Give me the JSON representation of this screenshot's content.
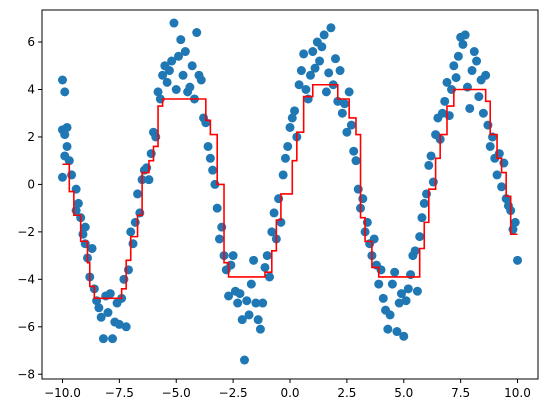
{
  "chart_data": {
    "type": "scatter",
    "title": "",
    "xlabel": "",
    "ylabel": "",
    "xlim": [
      -10.9,
      10.9
    ],
    "ylim": [
      -8.2,
      7.35
    ],
    "grid": false,
    "legend": "none",
    "x_ticks": [
      -10.0,
      -7.5,
      -5.0,
      -2.5,
      0.0,
      2.5,
      5.0,
      7.5,
      10.0
    ],
    "x_tick_labels": [
      "−10.0",
      "−7.5",
      "−5.0",
      "−2.5",
      "0.0",
      "2.5",
      "5.0",
      "7.5",
      "10.0"
    ],
    "y_ticks": [
      -8,
      -6,
      -4,
      -2,
      0,
      2,
      4,
      6
    ],
    "y_tick_labels": [
      "−8",
      "−6",
      "−4",
      "−2",
      "0",
      "2",
      "4",
      "6"
    ],
    "colors": {
      "points": "#1f77b4",
      "step_line": "#ff0000"
    },
    "series": [
      {
        "type": "scatter",
        "points": [
          [
            -10.0,
            4.4
          ],
          [
            -9.9,
            3.9
          ],
          [
            -10.0,
            2.3
          ],
          [
            -9.9,
            2.1
          ],
          [
            -9.8,
            2.4
          ],
          [
            -9.8,
            1.6
          ],
          [
            -9.9,
            1.2
          ],
          [
            -10.0,
            0.3
          ],
          [
            -9.7,
            1.0
          ],
          [
            -9.6,
            0.4
          ],
          [
            -9.4,
            -0.2
          ],
          [
            -9.4,
            -1.1
          ],
          [
            -9.3,
            -0.8
          ],
          [
            -9.2,
            -1.4
          ],
          [
            -9.1,
            -2.1
          ],
          [
            -9.0,
            -2.5
          ],
          [
            -9.0,
            -1.8
          ],
          [
            -8.9,
            -3.1
          ],
          [
            -8.8,
            -3.9
          ],
          [
            -8.7,
            -2.7
          ],
          [
            -8.6,
            -4.4
          ],
          [
            -8.5,
            -4.9
          ],
          [
            -8.4,
            -5.2
          ],
          [
            -8.3,
            -5.6
          ],
          [
            -8.2,
            -6.5
          ],
          [
            -8.1,
            -4.7
          ],
          [
            -8.0,
            -5.4
          ],
          [
            -7.9,
            -4.6
          ],
          [
            -7.8,
            -6.5
          ],
          [
            -7.7,
            -5.8
          ],
          [
            -7.6,
            -5.0
          ],
          [
            -7.5,
            -5.9
          ],
          [
            -7.4,
            -4.8
          ],
          [
            -7.3,
            -4.0
          ],
          [
            -7.2,
            -6.0
          ],
          [
            -7.1,
            -3.6
          ],
          [
            -7.0,
            -2.0
          ],
          [
            -6.9,
            -2.5
          ],
          [
            -6.8,
            -1.6
          ],
          [
            -6.7,
            -0.4
          ],
          [
            -6.6,
            -1.2
          ],
          [
            -6.5,
            0.2
          ],
          [
            -6.4,
            0.6
          ],
          [
            -6.3,
            0.7
          ],
          [
            -6.2,
            0.2
          ],
          [
            -6.1,
            1.3
          ],
          [
            -6.0,
            2.2
          ],
          [
            -5.9,
            2.0
          ],
          [
            -5.8,
            3.9
          ],
          [
            -5.7,
            3.6
          ],
          [
            -5.6,
            4.6
          ],
          [
            -5.5,
            5.0
          ],
          [
            -5.4,
            4.3
          ],
          [
            -5.3,
            4.8
          ],
          [
            -5.2,
            5.2
          ],
          [
            -5.1,
            6.8
          ],
          [
            -5.0,
            4.0
          ],
          [
            -4.9,
            5.4
          ],
          [
            -4.8,
            6.1
          ],
          [
            -4.7,
            4.6
          ],
          [
            -4.6,
            5.6
          ],
          [
            -4.5,
            3.9
          ],
          [
            -4.4,
            4.1
          ],
          [
            -4.3,
            5.0
          ],
          [
            -4.2,
            3.6
          ],
          [
            -4.1,
            6.4
          ],
          [
            -4.0,
            4.6
          ],
          [
            -3.9,
            4.4
          ],
          [
            -3.8,
            2.8
          ],
          [
            -3.7,
            2.6
          ],
          [
            -3.6,
            1.6
          ],
          [
            -3.5,
            1.1
          ],
          [
            -3.4,
            0.6
          ],
          [
            -3.3,
            0.0
          ],
          [
            -3.2,
            -1.0
          ],
          [
            -3.1,
            -2.3
          ],
          [
            -3.0,
            -1.8
          ],
          [
            -2.9,
            -3.0
          ],
          [
            -2.8,
            -3.6
          ],
          [
            -2.7,
            -4.7
          ],
          [
            -2.6,
            -3.4
          ],
          [
            -2.5,
            -3.0
          ],
          [
            -2.4,
            -4.5
          ],
          [
            -2.3,
            -5.0
          ],
          [
            -2.2,
            -4.6
          ],
          [
            -2.1,
            -5.7
          ],
          [
            -2.0,
            -7.4
          ],
          [
            -1.9,
            -4.9
          ],
          [
            -1.8,
            -5.5
          ],
          [
            -1.7,
            -4.2
          ],
          [
            -1.6,
            -3.2
          ],
          [
            -1.5,
            -5.0
          ],
          [
            -1.4,
            -5.7
          ],
          [
            -1.3,
            -6.1
          ],
          [
            -1.2,
            -5.0
          ],
          [
            -1.1,
            -3.5
          ],
          [
            -1.0,
            -3.0
          ],
          [
            -0.9,
            -3.9
          ],
          [
            -0.8,
            -2.0
          ],
          [
            -0.7,
            -1.2
          ],
          [
            -0.6,
            -2.3
          ],
          [
            -0.5,
            -0.6
          ],
          [
            -0.4,
            -1.6
          ],
          [
            -0.3,
            0.4
          ],
          [
            -0.2,
            1.1
          ],
          [
            -0.1,
            1.6
          ],
          [
            0.0,
            2.4
          ],
          [
            0.1,
            2.8
          ],
          [
            0.2,
            3.1
          ],
          [
            0.3,
            2.0
          ],
          [
            0.4,
            4.2
          ],
          [
            0.5,
            4.8
          ],
          [
            0.6,
            5.5
          ],
          [
            0.7,
            4.0
          ],
          [
            0.8,
            3.6
          ],
          [
            0.9,
            4.6
          ],
          [
            1.0,
            5.6
          ],
          [
            1.1,
            4.9
          ],
          [
            1.2,
            6.0
          ],
          [
            1.3,
            5.2
          ],
          [
            1.4,
            5.8
          ],
          [
            1.5,
            6.3
          ],
          [
            1.6,
            3.9
          ],
          [
            1.7,
            4.7
          ],
          [
            1.8,
            6.6
          ],
          [
            1.9,
            4.2
          ],
          [
            2.0,
            5.3
          ],
          [
            2.1,
            3.5
          ],
          [
            2.2,
            4.8
          ],
          [
            2.3,
            3.0
          ],
          [
            2.4,
            3.4
          ],
          [
            2.5,
            2.2
          ],
          [
            2.6,
            3.9
          ],
          [
            2.7,
            2.5
          ],
          [
            2.8,
            1.4
          ],
          [
            2.9,
            1.0
          ],
          [
            3.0,
            -0.2
          ],
          [
            3.1,
            -1.0
          ],
          [
            3.2,
            -0.6
          ],
          [
            3.3,
            -2.0
          ],
          [
            3.4,
            -1.6
          ],
          [
            3.5,
            -2.5
          ],
          [
            3.6,
            -3.0
          ],
          [
            3.7,
            -2.3
          ],
          [
            3.8,
            -3.4
          ],
          [
            3.9,
            -4.2
          ],
          [
            4.0,
            -3.6
          ],
          [
            4.1,
            -4.8
          ],
          [
            4.2,
            -5.3
          ],
          [
            4.3,
            -6.1
          ],
          [
            4.4,
            -5.5
          ],
          [
            4.5,
            -4.2
          ],
          [
            4.6,
            -3.7
          ],
          [
            4.7,
            -6.2
          ],
          [
            4.8,
            -5.0
          ],
          [
            4.9,
            -4.6
          ],
          [
            5.0,
            -6.4
          ],
          [
            5.1,
            -4.9
          ],
          [
            5.2,
            -4.4
          ],
          [
            5.3,
            -3.8
          ],
          [
            5.4,
            -3.0
          ],
          [
            5.5,
            -2.8
          ],
          [
            5.6,
            -4.5
          ],
          [
            5.7,
            -2.2
          ],
          [
            5.8,
            -1.4
          ],
          [
            5.9,
            -0.8
          ],
          [
            6.0,
            -0.4
          ],
          [
            6.1,
            0.8
          ],
          [
            6.2,
            1.2
          ],
          [
            6.3,
            0.1
          ],
          [
            6.4,
            2.1
          ],
          [
            6.5,
            2.8
          ],
          [
            6.6,
            1.9
          ],
          [
            6.7,
            3.0
          ],
          [
            6.8,
            3.5
          ],
          [
            6.9,
            4.3
          ],
          [
            7.0,
            2.9
          ],
          [
            7.1,
            4.0
          ],
          [
            7.2,
            5.0
          ],
          [
            7.3,
            4.5
          ],
          [
            7.4,
            5.4
          ],
          [
            7.5,
            6.2
          ],
          [
            7.6,
            5.9
          ],
          [
            7.7,
            6.3
          ],
          [
            7.8,
            4.1
          ],
          [
            7.9,
            3.2
          ],
          [
            8.0,
            4.8
          ],
          [
            8.1,
            5.6
          ],
          [
            8.2,
            5.2
          ],
          [
            8.3,
            3.7
          ],
          [
            8.4,
            4.4
          ],
          [
            8.5,
            3.0
          ],
          [
            8.6,
            4.6
          ],
          [
            8.7,
            2.5
          ],
          [
            8.8,
            1.6
          ],
          [
            8.9,
            2.0
          ],
          [
            9.0,
            1.1
          ],
          [
            9.1,
            0.4
          ],
          [
            9.2,
            1.3
          ],
          [
            9.3,
            -0.1
          ],
          [
            9.4,
            0.9
          ],
          [
            9.5,
            -0.6
          ],
          [
            9.6,
            -0.9
          ],
          [
            9.7,
            -1.1
          ],
          [
            9.8,
            -1.9
          ],
          [
            9.9,
            -1.6
          ],
          [
            10.0,
            -3.2
          ]
        ]
      },
      {
        "type": "step",
        "points": [
          [
            -10.0,
            0.85
          ],
          [
            -9.7,
            0.85
          ],
          [
            -9.7,
            -0.3
          ],
          [
            -9.5,
            -0.3
          ],
          [
            -9.5,
            -1.3
          ],
          [
            -9.2,
            -1.3
          ],
          [
            -9.2,
            -2.4
          ],
          [
            -8.9,
            -2.4
          ],
          [
            -8.9,
            -3.3
          ],
          [
            -8.8,
            -3.3
          ],
          [
            -8.8,
            -4.3
          ],
          [
            -8.6,
            -4.3
          ],
          [
            -8.6,
            -4.8
          ],
          [
            -7.4,
            -4.8
          ],
          [
            -7.4,
            -4.4
          ],
          [
            -7.2,
            -4.4
          ],
          [
            -7.2,
            -3.2
          ],
          [
            -7.0,
            -3.2
          ],
          [
            -7.0,
            -2.2
          ],
          [
            -6.7,
            -2.2
          ],
          [
            -6.7,
            -1.3
          ],
          [
            -6.5,
            -1.3
          ],
          [
            -6.5,
            0.5
          ],
          [
            -6.2,
            0.5
          ],
          [
            -6.2,
            1.0
          ],
          [
            -6.0,
            1.0
          ],
          [
            -6.0,
            1.6
          ],
          [
            -5.8,
            1.6
          ],
          [
            -5.8,
            3.3
          ],
          [
            -5.6,
            3.3
          ],
          [
            -5.6,
            3.6
          ],
          [
            -3.7,
            3.6
          ],
          [
            -3.7,
            2.7
          ],
          [
            -3.5,
            2.7
          ],
          [
            -3.5,
            2.1
          ],
          [
            -3.2,
            2.1
          ],
          [
            -3.2,
            0.0
          ],
          [
            -2.9,
            0.0
          ],
          [
            -2.9,
            -3.3
          ],
          [
            -2.7,
            -3.3
          ],
          [
            -2.7,
            -3.9
          ],
          [
            -1.1,
            -3.9
          ],
          [
            -1.1,
            -3.7
          ],
          [
            -0.8,
            -3.7
          ],
          [
            -0.8,
            -2.8
          ],
          [
            -0.6,
            -2.8
          ],
          [
            -0.6,
            -1.5
          ],
          [
            -0.4,
            -1.5
          ],
          [
            -0.4,
            -0.4
          ],
          [
            0.1,
            -0.4
          ],
          [
            0.1,
            1.0
          ],
          [
            0.3,
            1.0
          ],
          [
            0.3,
            2.2
          ],
          [
            0.6,
            2.2
          ],
          [
            0.6,
            3.7
          ],
          [
            1.0,
            3.7
          ],
          [
            1.0,
            4.2
          ],
          [
            2.1,
            4.2
          ],
          [
            2.1,
            3.6
          ],
          [
            2.6,
            3.6
          ],
          [
            2.6,
            2.8
          ],
          [
            2.9,
            2.8
          ],
          [
            2.9,
            2.1
          ],
          [
            3.1,
            2.1
          ],
          [
            3.1,
            -1.4
          ],
          [
            3.3,
            -1.4
          ],
          [
            3.3,
            -2.4
          ],
          [
            3.6,
            -2.4
          ],
          [
            3.6,
            -3.5
          ],
          [
            3.9,
            -3.5
          ],
          [
            3.9,
            -3.9
          ],
          [
            5.7,
            -3.9
          ],
          [
            5.7,
            -2.7
          ],
          [
            5.9,
            -2.7
          ],
          [
            5.9,
            -1.6
          ],
          [
            6.1,
            -1.6
          ],
          [
            6.1,
            -0.2
          ],
          [
            6.4,
            -0.2
          ],
          [
            6.4,
            1.1
          ],
          [
            6.6,
            1.1
          ],
          [
            6.6,
            2.1
          ],
          [
            6.9,
            2.1
          ],
          [
            6.9,
            3.3
          ],
          [
            7.2,
            3.3
          ],
          [
            7.2,
            4.0
          ],
          [
            8.6,
            4.0
          ],
          [
            8.6,
            3.5
          ],
          [
            8.8,
            3.5
          ],
          [
            8.8,
            2.1
          ],
          [
            9.1,
            2.1
          ],
          [
            9.1,
            1.1
          ],
          [
            9.3,
            1.1
          ],
          [
            9.3,
            0.5
          ],
          [
            9.5,
            0.5
          ],
          [
            9.5,
            -0.5
          ],
          [
            9.7,
            -0.5
          ],
          [
            9.7,
            -2.1
          ],
          [
            10.0,
            -2.1
          ]
        ]
      }
    ]
  }
}
